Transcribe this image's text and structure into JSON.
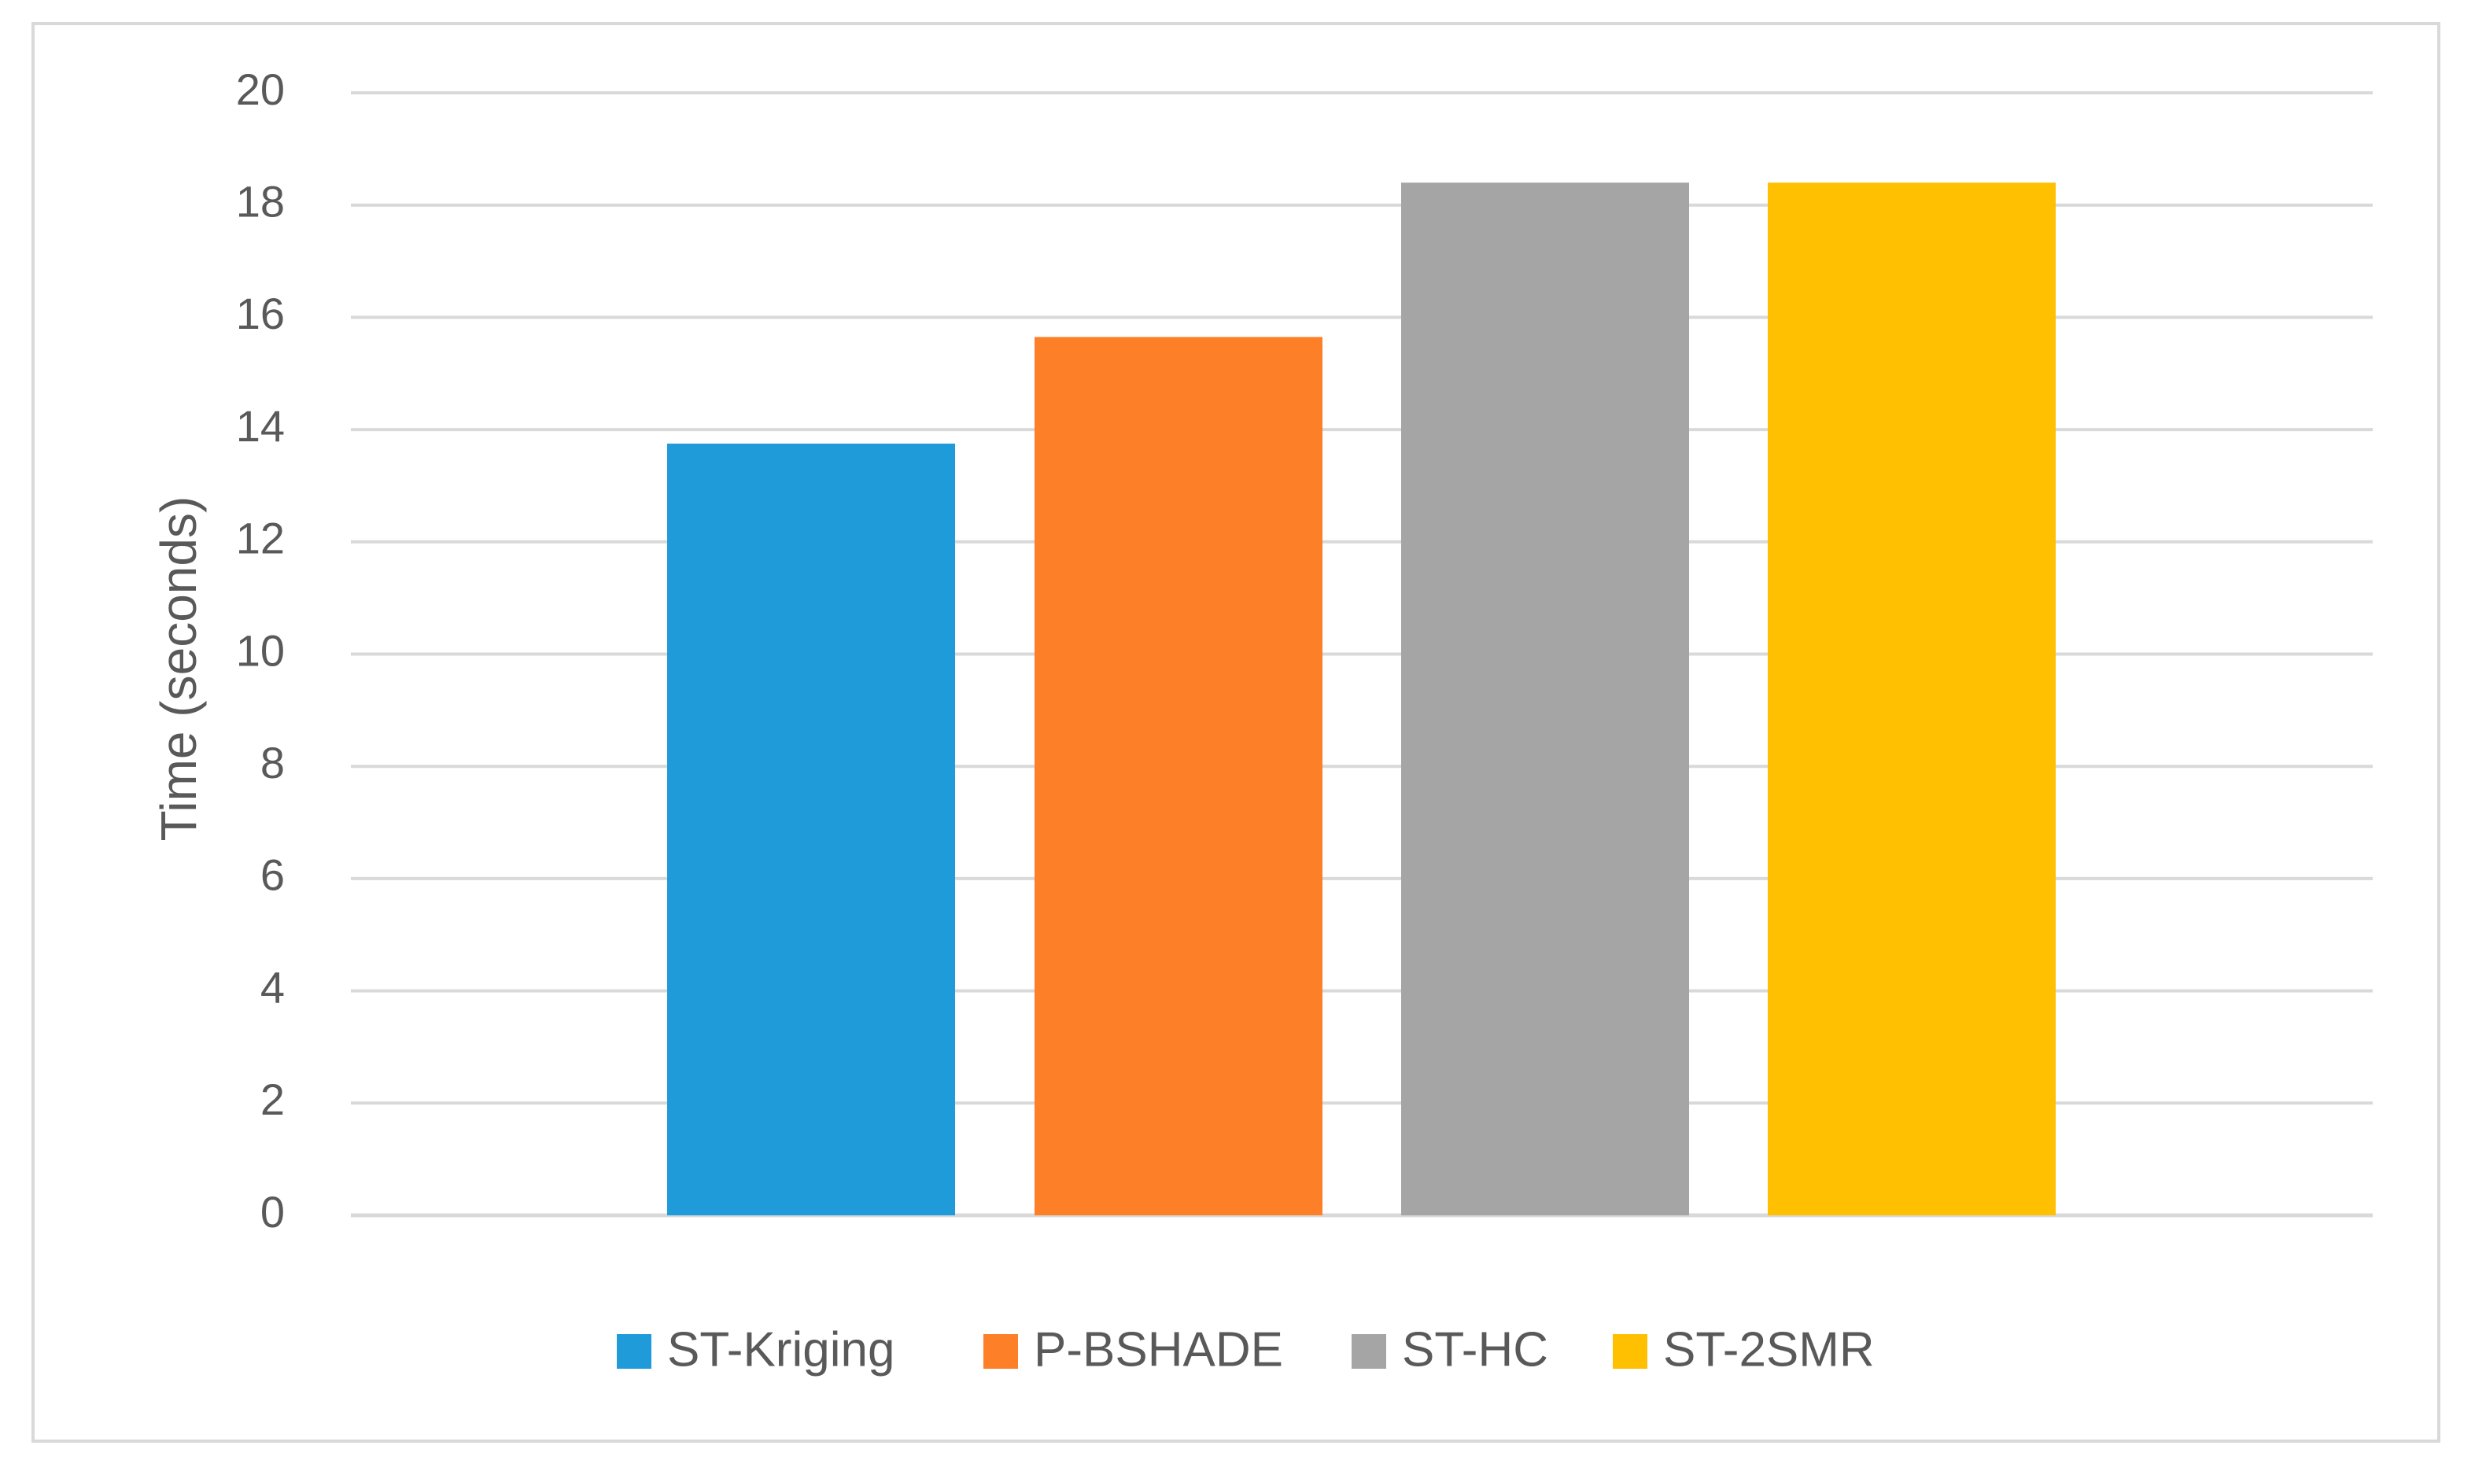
{
  "chart_data": {
    "type": "bar",
    "categories": [
      "ST-Kriging",
      "P-BSHADE",
      "ST-HC",
      "ST-2SMR"
    ],
    "values": [
      13.75,
      15.65,
      18.4,
      18.4
    ],
    "colors": [
      "#1f9bd9",
      "#fd7f28",
      "#a5a5a5",
      "#fec000"
    ],
    "title": "",
    "xlabel": "",
    "ylabel": "Time (seconds)",
    "ylim": [
      0,
      20
    ],
    "yticks": [
      0,
      2,
      4,
      6,
      8,
      10,
      12,
      14,
      16,
      18,
      20
    ],
    "grid": true,
    "legend": {
      "position": "bottom",
      "entries": [
        "ST-Kriging",
        "P-BSHADE",
        "ST-HC",
        "ST-2SMR"
      ]
    },
    "gridline_color": "#d9d9d9",
    "text_color": "#595959"
  }
}
